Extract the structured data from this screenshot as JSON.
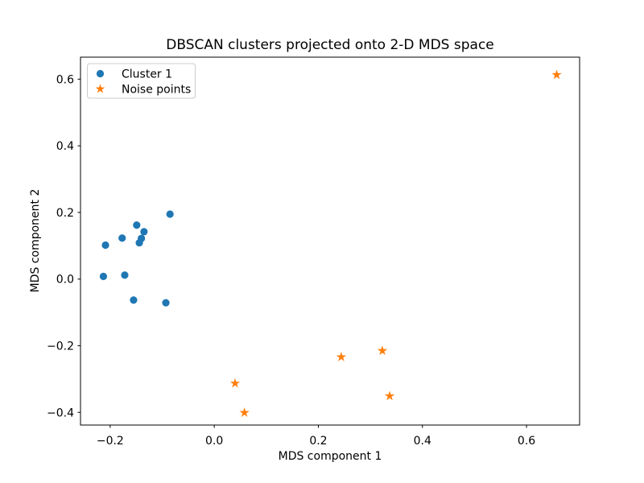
{
  "figure": {
    "background": "#ffffff",
    "axes_edge_color": "#000000",
    "tick_color": "#000000",
    "legend_border_color": "#cccccc",
    "legend_background": "#ffffff"
  },
  "chart_data": {
    "type": "scatter",
    "title": "DBSCAN clusters projected onto 2-D MDS space",
    "xlabel": "MDS component 1",
    "ylabel": "MDS component 2",
    "xlim": [
      -0.257,
      0.702
    ],
    "ylim": [
      -0.438,
      0.666
    ],
    "xticks": [
      -0.2,
      0.0,
      0.2,
      0.4,
      0.6
    ],
    "xtick_labels": [
      "−0.2",
      "0.0",
      "0.2",
      "0.4",
      "0.6"
    ],
    "yticks": [
      -0.4,
      -0.2,
      0.0,
      0.2,
      0.4,
      0.6
    ],
    "ytick_labels": [
      "−0.4",
      "−0.2",
      "0.0",
      "0.2",
      "0.4",
      "0.6"
    ],
    "grid": false,
    "legend_position": "upper-left",
    "series": [
      {
        "name": "Cluster 1",
        "marker": "circle",
        "color": "#1f77b4",
        "points": [
          [
            -0.085,
            0.195
          ],
          [
            -0.149,
            0.162
          ],
          [
            -0.135,
            0.142
          ],
          [
            -0.14,
            0.122
          ],
          [
            -0.144,
            0.109
          ],
          [
            -0.177,
            0.123
          ],
          [
            -0.209,
            0.102
          ],
          [
            -0.213,
            0.008
          ],
          [
            -0.172,
            0.012
          ],
          [
            -0.155,
            -0.063
          ],
          [
            -0.093,
            -0.071
          ]
        ]
      },
      {
        "name": "Noise points",
        "marker": "star",
        "color": "#ff7f0e",
        "points": [
          [
            0.658,
            0.613
          ],
          [
            0.244,
            -0.234
          ],
          [
            0.323,
            -0.215
          ],
          [
            0.337,
            -0.351
          ],
          [
            0.04,
            -0.313
          ],
          [
            0.058,
            -0.401
          ]
        ]
      }
    ]
  }
}
